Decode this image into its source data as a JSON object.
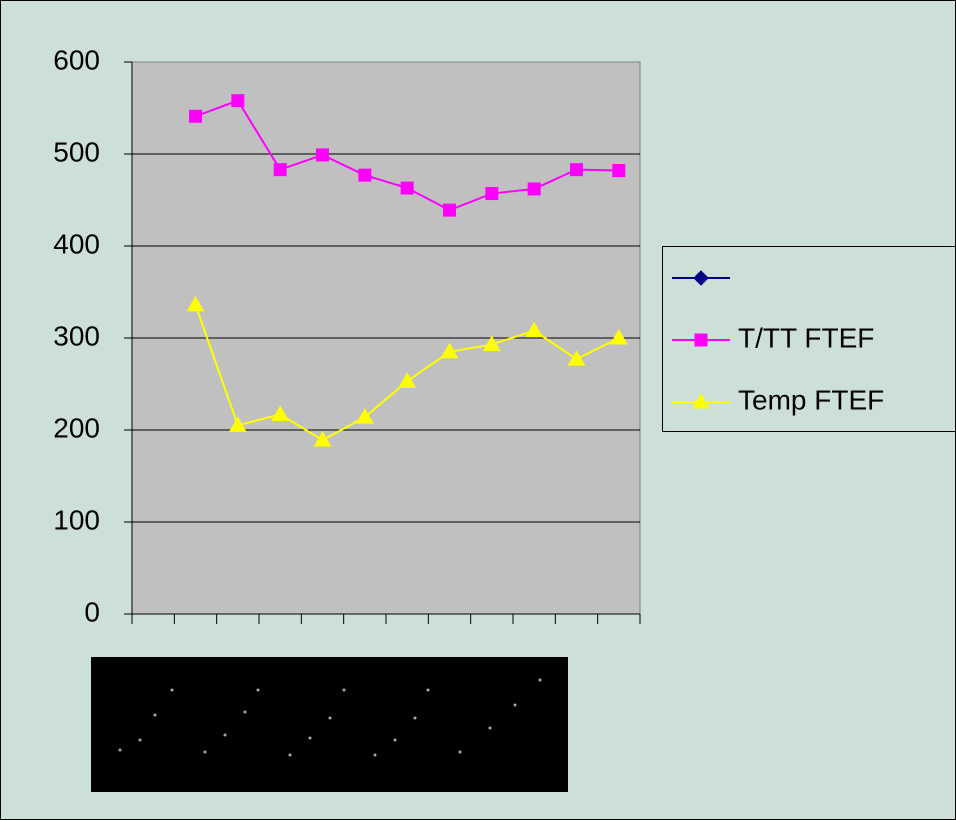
{
  "chart_data": {
    "type": "line",
    "categories": [
      null,
      null,
      null,
      null,
      null,
      null,
      null,
      null,
      null,
      null,
      null,
      null
    ],
    "series": [
      {
        "name": null,
        "color": "#000080",
        "marker": "diamond",
        "values": [
          null,
          null,
          null,
          null,
          null,
          null,
          null,
          null,
          null,
          null,
          null,
          null
        ]
      },
      {
        "name": "T/TT FTEF",
        "color": "#ff00ff",
        "marker": "square",
        "values": [
          null,
          541,
          558,
          483,
          499,
          477,
          463,
          439,
          457,
          462,
          483,
          482
        ]
      },
      {
        "name": "Temp FTEF",
        "color": "#ffff00",
        "marker": "triangle",
        "values": [
          null,
          336,
          205,
          217,
          189,
          214,
          253,
          285,
          293,
          308,
          277,
          300
        ]
      }
    ],
    "ylim": [
      0,
      600
    ],
    "yticks": [
      0,
      100,
      200,
      300,
      400,
      500,
      600
    ],
    "grid": true,
    "legend": "right"
  }
}
